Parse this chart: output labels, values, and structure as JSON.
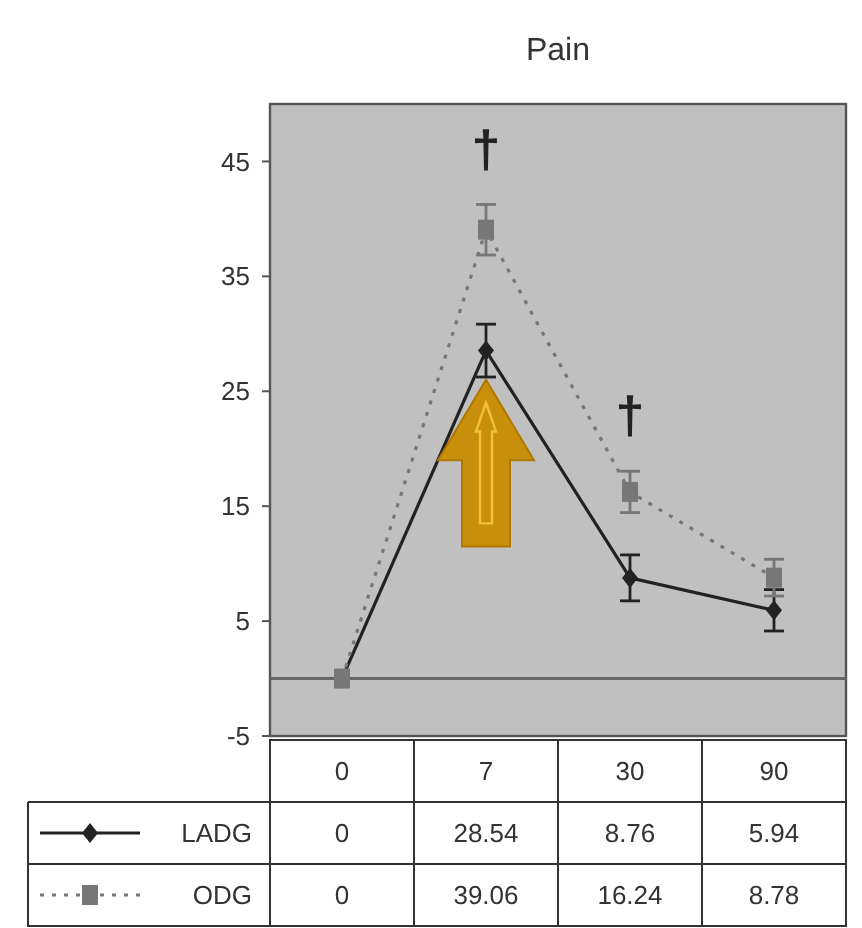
{
  "chart_data": {
    "type": "line",
    "title": "Pain",
    "categories": [
      "0",
      "7",
      "30",
      "90"
    ],
    "series": [
      {
        "name": "LADG",
        "color": "#222222",
        "values": [
          0,
          28.54,
          8.76,
          5.94
        ],
        "errors": [
          null,
          2.3,
          2,
          1.8
        ],
        "marker": "diamond",
        "line_style": "solid"
      },
      {
        "name": "ODG",
        "color": "#777777",
        "values": [
          0,
          39.06,
          16.24,
          8.78
        ],
        "errors": [
          null,
          2.2,
          1.8,
          1.6
        ],
        "marker": "square",
        "line_style": "dotted"
      }
    ],
    "ylim": [
      -5,
      50
    ],
    "yticks": [
      45,
      35,
      25,
      15,
      5,
      -5
    ],
    "grid": false,
    "legend": "bottom left",
    "data_labels": true,
    "ref_lines": [
      {
        "axis": "y",
        "value": 0,
        "color": "#666666"
      }
    ],
    "annotations": [
      "†",
      "†"
    ]
  }
}
